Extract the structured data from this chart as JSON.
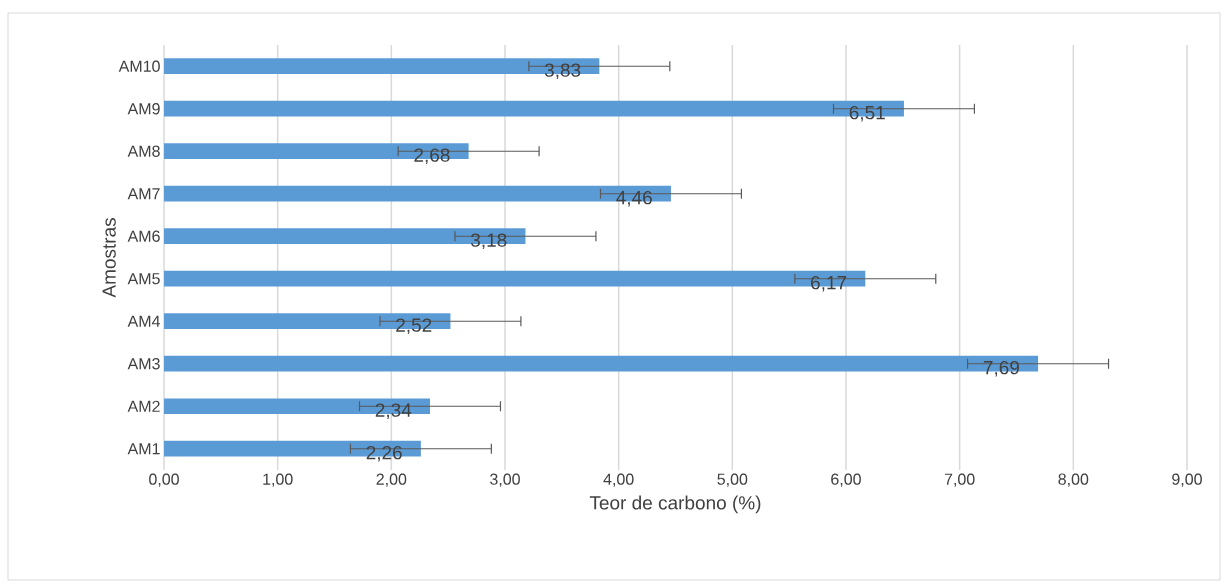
{
  "chart_data": {
    "type": "bar",
    "orientation": "horizontal",
    "xlabel": "Teor de carbono (%)",
    "ylabel": "Amostras",
    "categories": [
      "AM10",
      "AM9",
      "AM8",
      "AM7",
      "AM6",
      "AM5",
      "AM4",
      "AM3",
      "AM2",
      "AM1"
    ],
    "values": [
      3.83,
      6.51,
      2.68,
      4.46,
      3.18,
      6.17,
      2.52,
      7.69,
      2.34,
      2.26
    ],
    "errors": [
      0.62,
      0.62,
      0.62,
      0.62,
      0.62,
      0.62,
      0.62,
      0.62,
      0.62,
      0.62
    ],
    "value_labels": [
      "3,83",
      "6,51",
      "2,68",
      "4,46",
      "3,18",
      "6,17",
      "2,52",
      "7,69",
      "2,34",
      "2,26"
    ],
    "color": "#5b9bd5",
    "xlim": [
      0,
      9
    ],
    "xticks": [
      {
        "value": 0,
        "label": "0,00"
      },
      {
        "value": 1,
        "label": "1,00"
      },
      {
        "value": 2,
        "label": "2,00"
      },
      {
        "value": 3,
        "label": "3,00"
      },
      {
        "value": 4,
        "label": "4,00"
      },
      {
        "value": 5,
        "label": "5,00"
      },
      {
        "value": 6,
        "label": "6,00"
      },
      {
        "value": 7,
        "label": "7,00"
      },
      {
        "value": 8,
        "label": "8,00"
      },
      {
        "value": 9,
        "label": "9,00"
      }
    ],
    "grid": "x"
  }
}
